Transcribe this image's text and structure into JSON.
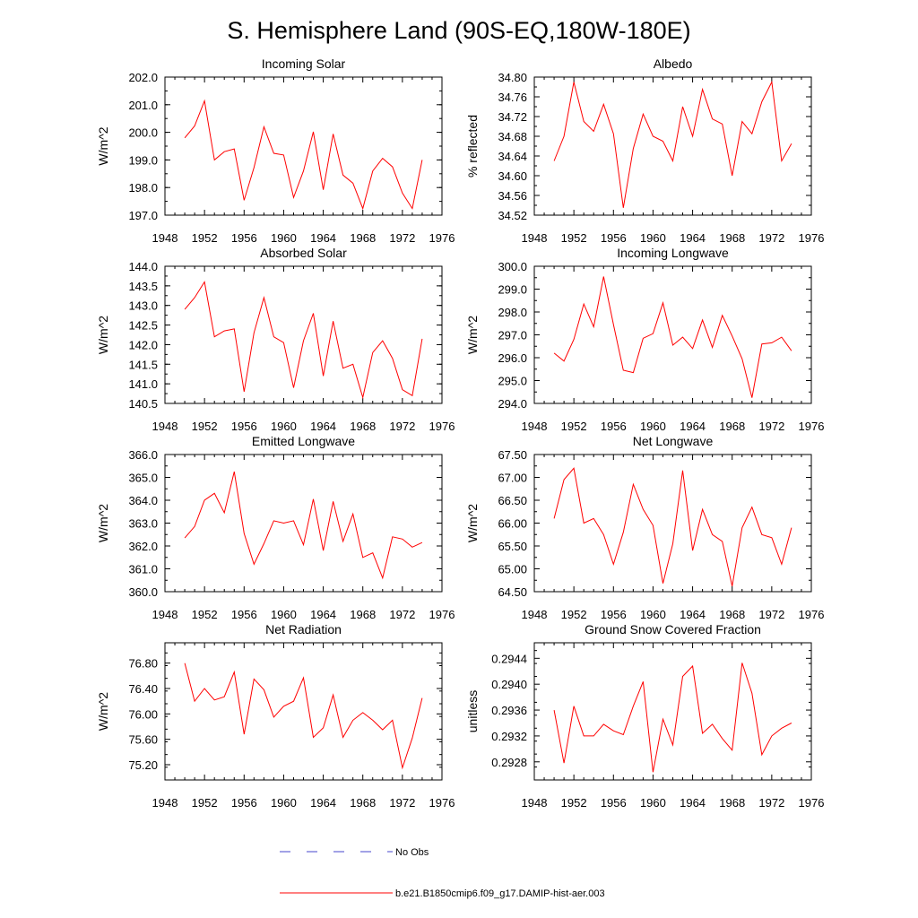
{
  "figure": {
    "title": "S. Hemisphere Land (90S-EQ,180W-180E)"
  },
  "legend": {
    "obs_label": "No Obs",
    "obs_color": "#4444cc",
    "model_label": "b.e21.B1850cmip6.f09_g17.DAMIP-hist-aer.003",
    "model_color": "#ff0000"
  },
  "chart_data": [
    {
      "type": "line",
      "title": "Incoming Solar",
      "ylabel": "W/m^2",
      "xlim": [
        1948,
        1976
      ],
      "x_ticks": [
        1948,
        1952,
        1956,
        1960,
        1964,
        1968,
        1972,
        1976
      ],
      "ylim": [
        197.0,
        202.0
      ],
      "y_ticks": [
        "197.0",
        "198.0",
        "199.0",
        "200.0",
        "201.0",
        "202.0"
      ],
      "x": [
        1950,
        1951,
        1952,
        1953,
        1954,
        1955,
        1956,
        1957,
        1958,
        1959,
        1960,
        1961,
        1962,
        1963,
        1964,
        1965,
        1966,
        1967,
        1968,
        1969,
        1970,
        1971,
        1972,
        1973,
        1974
      ],
      "series": [
        {
          "name": "b.e21.B1850cmip6.f09_g17.DAMIP-hist-aer.003",
          "values": [
            199.8,
            200.23,
            201.14,
            199.0,
            199.3,
            199.4,
            197.54,
            198.72,
            200.2,
            199.24,
            199.18,
            197.64,
            198.6,
            200.02,
            197.92,
            199.94,
            198.45,
            198.16,
            197.24,
            198.6,
            199.06,
            198.75,
            197.8,
            197.24,
            199.0
          ]
        }
      ]
    },
    {
      "type": "line",
      "title": "Albedo",
      "ylabel": "% reflected",
      "xlim": [
        1948,
        1976
      ],
      "x_ticks": [
        1948,
        1952,
        1956,
        1960,
        1964,
        1968,
        1972,
        1976
      ],
      "ylim": [
        34.52,
        34.8
      ],
      "y_ticks": [
        "34.52",
        "34.56",
        "34.60",
        "34.64",
        "34.68",
        "34.72",
        "34.76",
        "34.80"
      ],
      "x": [
        1950,
        1951,
        1952,
        1953,
        1954,
        1955,
        1956,
        1957,
        1958,
        1959,
        1960,
        1961,
        1962,
        1963,
        1964,
        1965,
        1966,
        1967,
        1968,
        1969,
        1970,
        1971,
        1972,
        1973,
        1974
      ],
      "series": [
        {
          "name": "b.e21.B1850cmip6.f09_g17.DAMIP-hist-aer.003",
          "values": [
            34.63,
            34.68,
            34.79,
            34.71,
            34.69,
            34.745,
            34.685,
            34.535,
            34.655,
            34.725,
            34.68,
            34.67,
            34.63,
            34.74,
            34.68,
            34.775,
            34.715,
            34.705,
            34.6,
            34.71,
            34.685,
            34.75,
            34.79,
            34.63,
            34.665
          ]
        }
      ]
    },
    {
      "type": "line",
      "title": "Absorbed Solar",
      "ylabel": "W/m^2",
      "xlim": [
        1948,
        1976
      ],
      "x_ticks": [
        1948,
        1952,
        1956,
        1960,
        1964,
        1968,
        1972,
        1976
      ],
      "ylim": [
        140.5,
        144.0
      ],
      "y_ticks": [
        "140.5",
        "141.0",
        "141.5",
        "142.0",
        "142.5",
        "143.0",
        "143.5",
        "144.0"
      ],
      "x": [
        1950,
        1951,
        1952,
        1953,
        1954,
        1955,
        1956,
        1957,
        1958,
        1959,
        1960,
        1961,
        1962,
        1963,
        1964,
        1965,
        1966,
        1967,
        1968,
        1969,
        1970,
        1971,
        1972,
        1973,
        1974
      ],
      "series": [
        {
          "name": "b.e21.B1850cmip6.f09_g17.DAMIP-hist-aer.003",
          "values": [
            142.9,
            143.2,
            143.6,
            142.2,
            142.35,
            142.4,
            140.8,
            142.3,
            143.2,
            142.2,
            142.05,
            140.9,
            142.1,
            142.8,
            141.2,
            142.6,
            141.4,
            141.5,
            140.65,
            141.8,
            142.1,
            141.65,
            140.85,
            140.7,
            142.15
          ]
        }
      ]
    },
    {
      "type": "line",
      "title": "Incoming Longwave",
      "ylabel": "W/m^2",
      "xlim": [
        1948,
        1976
      ],
      "x_ticks": [
        1948,
        1952,
        1956,
        1960,
        1964,
        1968,
        1972,
        1976
      ],
      "ylim": [
        294.0,
        300.0
      ],
      "y_ticks": [
        "294.0",
        "295.0",
        "296.0",
        "297.0",
        "298.0",
        "299.0",
        "300.0"
      ],
      "x": [
        1950,
        1951,
        1952,
        1953,
        1954,
        1955,
        1956,
        1957,
        1958,
        1959,
        1960,
        1961,
        1962,
        1963,
        1964,
        1965,
        1966,
        1967,
        1968,
        1969,
        1970,
        1971,
        1972,
        1973,
        1974
      ],
      "series": [
        {
          "name": "b.e21.B1850cmip6.f09_g17.DAMIP-hist-aer.003",
          "values": [
            296.2,
            295.85,
            296.8,
            298.35,
            297.35,
            299.55,
            297.45,
            295.45,
            295.35,
            296.85,
            297.05,
            298.4,
            296.55,
            296.9,
            296.4,
            297.65,
            296.45,
            297.85,
            296.95,
            295.95,
            294.25,
            296.6,
            296.65,
            296.9,
            296.3
          ]
        }
      ]
    },
    {
      "type": "line",
      "title": "Emitted Longwave",
      "ylabel": "W/m^2",
      "xlim": [
        1948,
        1976
      ],
      "x_ticks": [
        1948,
        1952,
        1956,
        1960,
        1964,
        1968,
        1972,
        1976
      ],
      "ylim": [
        360.0,
        366.0
      ],
      "y_ticks": [
        "360.0",
        "361.0",
        "362.0",
        "363.0",
        "364.0",
        "365.0",
        "366.0"
      ],
      "x": [
        1950,
        1951,
        1952,
        1953,
        1954,
        1955,
        1956,
        1957,
        1958,
        1959,
        1960,
        1961,
        1962,
        1963,
        1964,
        1965,
        1966,
        1967,
        1968,
        1969,
        1970,
        1971,
        1972,
        1973,
        1974
      ],
      "series": [
        {
          "name": "b.e21.B1850cmip6.f09_g17.DAMIP-hist-aer.003",
          "values": [
            362.35,
            362.85,
            364.0,
            364.3,
            363.45,
            365.25,
            362.55,
            361.2,
            362.1,
            363.1,
            363.0,
            363.1,
            362.05,
            364.05,
            361.8,
            363.95,
            362.2,
            363.4,
            361.5,
            361.7,
            360.6,
            362.4,
            362.3,
            361.95,
            362.15
          ]
        }
      ]
    },
    {
      "type": "line",
      "title": "Net Longwave",
      "ylabel": "W/m^2",
      "xlim": [
        1948,
        1976
      ],
      "x_ticks": [
        1948,
        1952,
        1956,
        1960,
        1964,
        1968,
        1972,
        1976
      ],
      "ylim": [
        64.5,
        67.5
      ],
      "y_ticks": [
        "64.50",
        "65.00",
        "65.50",
        "66.00",
        "66.50",
        "67.00",
        "67.50"
      ],
      "x": [
        1950,
        1951,
        1952,
        1953,
        1954,
        1955,
        1956,
        1957,
        1958,
        1959,
        1960,
        1961,
        1962,
        1963,
        1964,
        1965,
        1966,
        1967,
        1968,
        1969,
        1970,
        1971,
        1972,
        1973,
        1974
      ],
      "series": [
        {
          "name": "b.e21.B1850cmip6.f09_g17.DAMIP-hist-aer.003",
          "values": [
            66.1,
            66.95,
            67.2,
            66.0,
            66.1,
            65.75,
            65.1,
            65.8,
            66.85,
            66.3,
            65.95,
            64.68,
            65.55,
            67.15,
            65.4,
            66.3,
            65.75,
            65.6,
            64.62,
            65.9,
            66.35,
            65.75,
            65.68,
            65.1,
            65.9
          ]
        }
      ]
    },
    {
      "type": "line",
      "title": "Net Radiation",
      "ylabel": "W/m^2",
      "xlim": [
        1948,
        1976
      ],
      "x_ticks": [
        1948,
        1952,
        1956,
        1960,
        1964,
        1968,
        1972,
        1976
      ],
      "ylim": [
        74.96,
        77.12
      ],
      "y_ticks": [
        "75.20",
        "75.60",
        "76.00",
        "76.40",
        "76.80"
      ],
      "x": [
        1950,
        1951,
        1952,
        1953,
        1954,
        1955,
        1956,
        1957,
        1958,
        1959,
        1960,
        1961,
        1962,
        1963,
        1964,
        1965,
        1966,
        1967,
        1968,
        1969,
        1970,
        1971,
        1972,
        1973,
        1974
      ],
      "series": [
        {
          "name": "b.e21.B1850cmip6.f09_g17.DAMIP-hist-aer.003",
          "values": [
            76.8,
            76.2,
            76.4,
            76.22,
            76.27,
            76.66,
            75.68,
            76.55,
            76.38,
            75.95,
            76.12,
            76.2,
            76.57,
            75.63,
            75.78,
            76.3,
            75.63,
            75.9,
            76.02,
            75.9,
            75.75,
            75.9,
            75.15,
            75.62,
            76.25
          ]
        }
      ]
    },
    {
      "type": "line",
      "title": "Ground Snow Covered Fraction",
      "ylabel": "unitless",
      "xlim": [
        1948,
        1976
      ],
      "x_ticks": [
        1948,
        1952,
        1956,
        1960,
        1964,
        1968,
        1972,
        1976
      ],
      "ylim": [
        0.29252,
        0.29464
      ],
      "y_ticks": [
        "0.2928",
        "0.2932",
        "0.2936",
        "0.2940",
        "0.2944"
      ],
      "x": [
        1950,
        1951,
        1952,
        1953,
        1954,
        1955,
        1956,
        1957,
        1958,
        1959,
        1960,
        1961,
        1962,
        1963,
        1964,
        1965,
        1966,
        1967,
        1968,
        1969,
        1970,
        1971,
        1972,
        1973,
        1974
      ],
      "series": [
        {
          "name": "b.e21.B1850cmip6.f09_g17.DAMIP-hist-aer.003",
          "values": [
            0.2936,
            0.29278,
            0.29366,
            0.2932,
            0.2932,
            0.29338,
            0.29328,
            0.29322,
            0.29366,
            0.29404,
            0.29264,
            0.29346,
            0.29306,
            0.29412,
            0.29428,
            0.29324,
            0.29338,
            0.29316,
            0.29298,
            0.29433,
            0.29386,
            0.29291,
            0.2932,
            0.29332,
            0.2934
          ]
        }
      ]
    }
  ]
}
